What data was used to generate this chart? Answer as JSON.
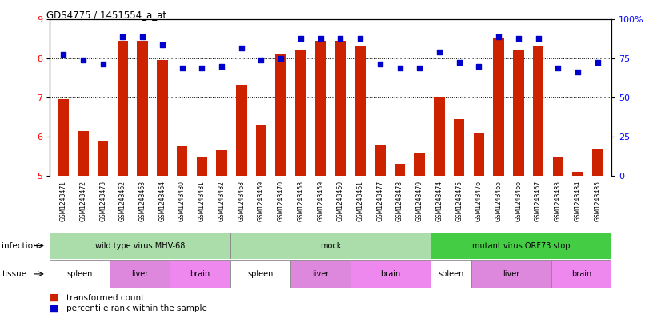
{
  "title": "GDS4775 / 1451554_a_at",
  "samples": [
    "GSM1243471",
    "GSM1243472",
    "GSM1243473",
    "GSM1243462",
    "GSM1243463",
    "GSM1243464",
    "GSM1243480",
    "GSM1243481",
    "GSM1243482",
    "GSM1243468",
    "GSM1243469",
    "GSM1243470",
    "GSM1243458",
    "GSM1243459",
    "GSM1243460",
    "GSM1243461",
    "GSM1243477",
    "GSM1243478",
    "GSM1243479",
    "GSM1243474",
    "GSM1243475",
    "GSM1243476",
    "GSM1243465",
    "GSM1243466",
    "GSM1243467",
    "GSM1243483",
    "GSM1243484",
    "GSM1243485"
  ],
  "bar_values": [
    6.95,
    6.15,
    5.9,
    8.45,
    8.45,
    7.95,
    5.75,
    5.5,
    5.65,
    7.3,
    6.3,
    8.1,
    8.2,
    8.45,
    8.45,
    8.3,
    5.8,
    5.3,
    5.6,
    7.0,
    6.45,
    6.1,
    8.5,
    8.2,
    8.3,
    5.5,
    5.1,
    5.7
  ],
  "dot_values": [
    8.1,
    7.95,
    7.85,
    8.55,
    8.55,
    8.35,
    7.75,
    7.75,
    7.8,
    8.25,
    7.95,
    8.0,
    8.5,
    8.5,
    8.5,
    8.5,
    7.85,
    7.75,
    7.75,
    8.15,
    7.9,
    7.8,
    8.55,
    8.5,
    8.5,
    7.75,
    7.65,
    7.9
  ],
  "ylim_left": [
    5,
    9
  ],
  "ylim_right": [
    0,
    100
  ],
  "yticks_left": [
    5,
    6,
    7,
    8,
    9
  ],
  "yticks_right": [
    0,
    25,
    50,
    75,
    100
  ],
  "ytick_labels_right": [
    "0",
    "25",
    "50",
    "75",
    "100%"
  ],
  "bar_color": "#cc2200",
  "dot_color": "#0000cc",
  "infection_groups": [
    {
      "label": "wild type virus MHV-68",
      "start": 0,
      "end": 9,
      "color": "#aaddaa"
    },
    {
      "label": "mock",
      "start": 9,
      "end": 19,
      "color": "#aaddaa"
    },
    {
      "label": "mutant virus ORF73.stop",
      "start": 19,
      "end": 28,
      "color": "#44cc44"
    }
  ],
  "tissue_groups": [
    {
      "label": "spleen",
      "start": 0,
      "end": 3,
      "color": "#ffffff"
    },
    {
      "label": "liver",
      "start": 3,
      "end": 6,
      "color": "#dd88dd"
    },
    {
      "label": "brain",
      "start": 6,
      "end": 9,
      "color": "#ee88ee"
    },
    {
      "label": "spleen",
      "start": 9,
      "end": 12,
      "color": "#ffffff"
    },
    {
      "label": "liver",
      "start": 12,
      "end": 15,
      "color": "#dd88dd"
    },
    {
      "label": "brain",
      "start": 15,
      "end": 19,
      "color": "#ee88ee"
    },
    {
      "label": "spleen",
      "start": 19,
      "end": 21,
      "color": "#ffffff"
    },
    {
      "label": "liver",
      "start": 21,
      "end": 25,
      "color": "#dd88dd"
    },
    {
      "label": "brain",
      "start": 25,
      "end": 28,
      "color": "#ee88ee"
    }
  ],
  "infection_label": "infection",
  "tissue_label": "tissue",
  "legend_bar": "transformed count",
  "legend_dot": "percentile rank within the sample"
}
